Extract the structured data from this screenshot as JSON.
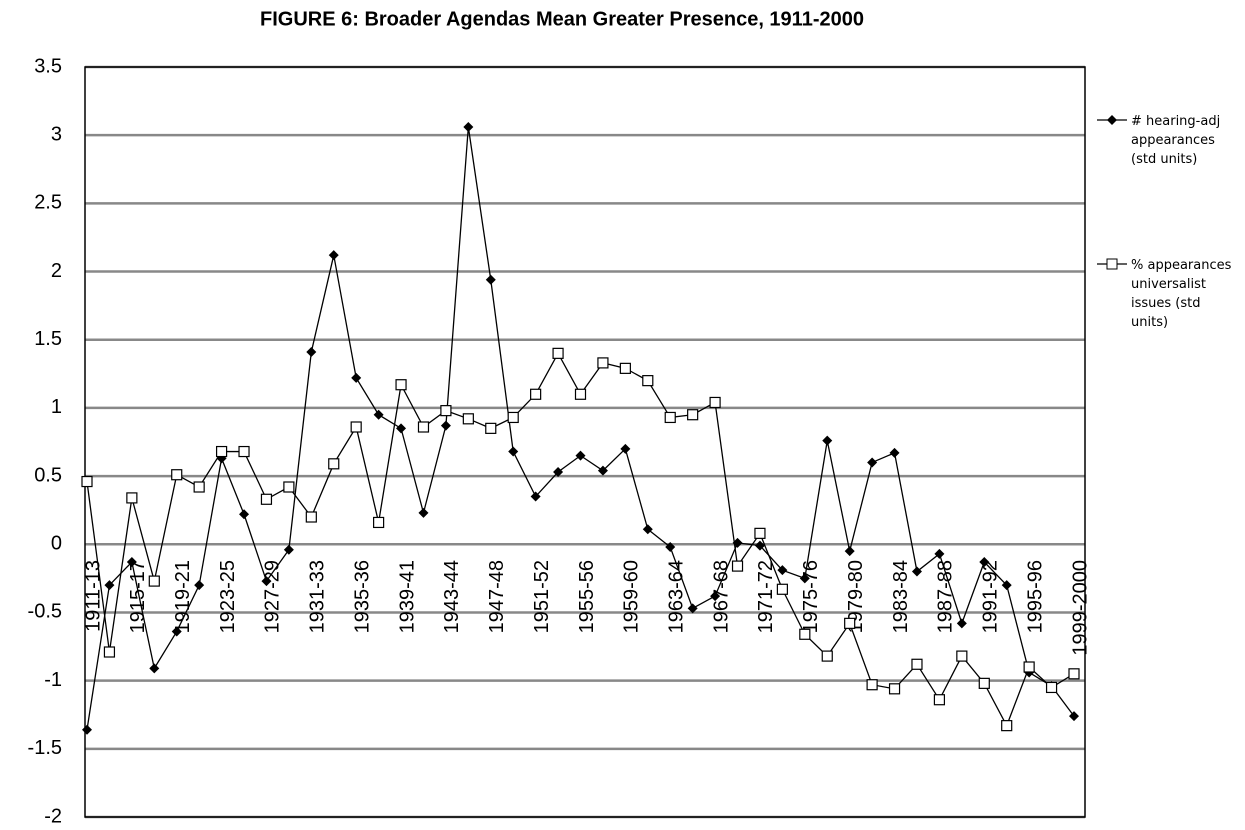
{
  "chart_data": {
    "type": "line",
    "title": "FIGURE 6: Broader Agendas Mean Greater Presence, 1911-2000",
    "categories": [
      "1911-13",
      null,
      "1915-17",
      null,
      "1919-21",
      null,
      "1923-25",
      null,
      "1927-29",
      null,
      "1931-33",
      null,
      "1935-36",
      null,
      "1939-41",
      null,
      "1943-44",
      null,
      "1947-48",
      null,
      "1951-52",
      null,
      "1955-56",
      null,
      "1959-60",
      null,
      "1963-64",
      null,
      "1967-68",
      null,
      "1971-72",
      null,
      "1975-76",
      null,
      "1979-80",
      null,
      "1983-84",
      null,
      "1987-88",
      null,
      "1991-92",
      null,
      "1995-96",
      null,
      "1999-2000"
    ],
    "series": [
      {
        "name": "# hearing-adj appearances (std units)",
        "color": "#000000",
        "marker": "diamond",
        "values": [
          -1.36,
          -0.3,
          -0.13,
          -0.91,
          -0.64,
          -0.3,
          0.63,
          0.22,
          -0.27,
          -0.04,
          1.41,
          2.12,
          1.22,
          0.95,
          0.85,
          0.23,
          0.87,
          3.06,
          1.94,
          0.68,
          0.35,
          0.53,
          0.65,
          0.54,
          0.7,
          0.11,
          -0.02,
          -0.47,
          -0.38,
          0.01,
          -0.01,
          -0.19,
          -0.25,
          0.76,
          -0.05,
          0.6,
          0.67,
          -0.2,
          -0.07,
          -0.58,
          -0.13,
          -0.3,
          -0.94,
          -1.04,
          -1.26
        ]
      },
      {
        "name": "% appearances universalist issues (std units)",
        "color": "#000000",
        "marker": "square",
        "values": [
          0.46,
          -0.79,
          0.34,
          -0.27,
          0.51,
          0.42,
          0.68,
          0.68,
          0.33,
          0.42,
          0.2,
          0.59,
          0.86,
          0.16,
          1.17,
          0.86,
          0.98,
          0.92,
          0.85,
          0.93,
          1.1,
          1.4,
          1.1,
          1.33,
          1.29,
          1.2,
          0.93,
          0.95,
          1.04,
          -0.16,
          0.08,
          -0.33,
          -0.66,
          -0.82,
          -0.58,
          -1.03,
          -1.06,
          -0.88,
          -1.14,
          -0.82,
          -1.02,
          -1.33,
          -0.9,
          -1.05,
          -0.95
        ]
      }
    ],
    "ylim": [
      -2,
      3.5
    ],
    "yticks": [
      -2,
      -1.5,
      -1,
      -0.5,
      0,
      0.5,
      1,
      1.5,
      2,
      2.5,
      3,
      3.5
    ],
    "grid": true,
    "legend": "right"
  }
}
